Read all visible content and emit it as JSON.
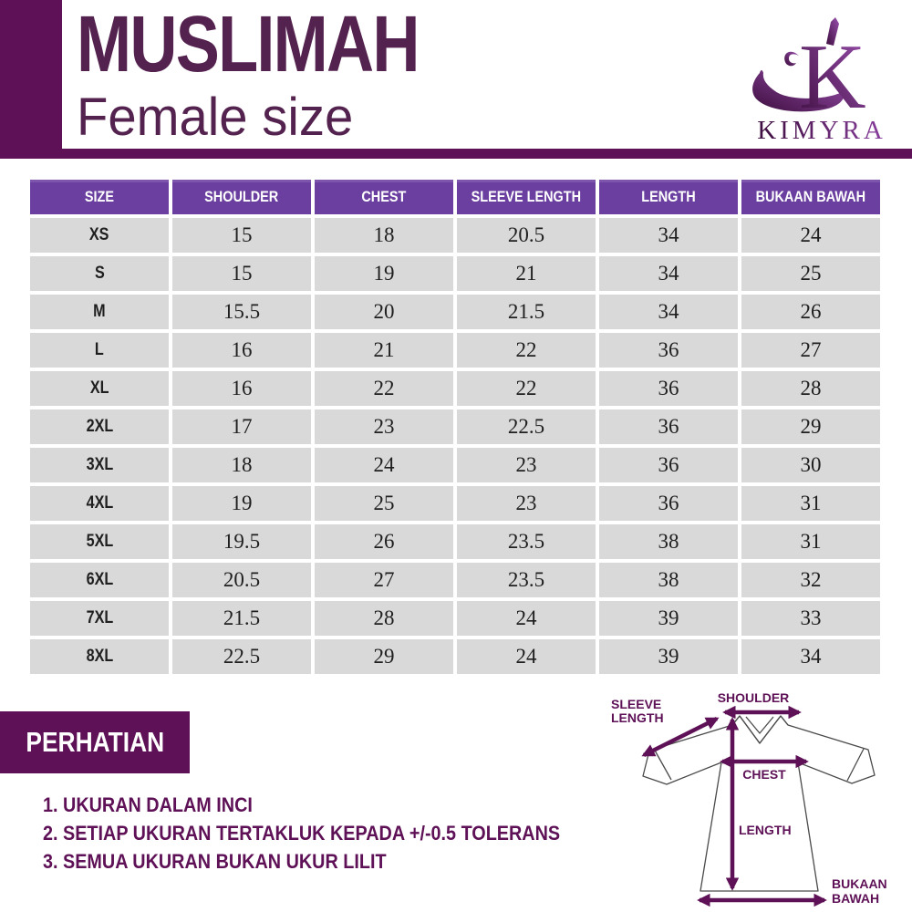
{
  "header": {
    "title": "MUSLIMAH",
    "subtitle": "Female size",
    "brand": "KIMYRA",
    "brand_monogram": "K"
  },
  "table": {
    "columns": [
      "SIZE",
      "SHOULDER",
      "CHEST",
      "SLEEVE LENGTH",
      "LENGTH",
      "BUKAAN BAWAH"
    ],
    "rows": [
      [
        "XS",
        "15",
        "18",
        "20.5",
        "34",
        "24"
      ],
      [
        "S",
        "15",
        "19",
        "21",
        "34",
        "25"
      ],
      [
        "M",
        "15.5",
        "20",
        "21.5",
        "34",
        "26"
      ],
      [
        "L",
        "16",
        "21",
        "22",
        "36",
        "27"
      ],
      [
        "XL",
        "16",
        "22",
        "22",
        "36",
        "28"
      ],
      [
        "2XL",
        "17",
        "23",
        "22.5",
        "36",
        "29"
      ],
      [
        "3XL",
        "18",
        "24",
        "23",
        "36",
        "30"
      ],
      [
        "4XL",
        "19",
        "25",
        "23",
        "36",
        "31"
      ],
      [
        "5XL",
        "19.5",
        "26",
        "23.5",
        "38",
        "31"
      ],
      [
        "6XL",
        "20.5",
        "27",
        "23.5",
        "38",
        "32"
      ],
      [
        "7XL",
        "21.5",
        "28",
        "24",
        "39",
        "33"
      ],
      [
        "8XL",
        "22.5",
        "29",
        "24",
        "39",
        "34"
      ]
    ]
  },
  "notes": {
    "title": "PERHATIAN",
    "items": [
      "1. UKURAN DALAM INCI",
      "2. SETIAP UKURAN TERTAKLUK KEPADA +/-0.5 TOLERANS",
      "3. SEMUA UKURAN BUKAN UKUR LILIT"
    ]
  },
  "diagram": {
    "sleeve_label_line1": "SLEEVE",
    "sleeve_label_line2": "LENGTH",
    "shoulder_label": "SHOULDER",
    "chest_label": "CHEST",
    "length_label": "LENGTH",
    "bukaan_label_line1": "BUKAAN",
    "bukaan_label_line2": "BAWAH"
  },
  "colors": {
    "brand_dark_purple": "#5e1156",
    "title_plum": "#54224f",
    "table_header_purple": "#6a3f9f",
    "row_gray": "#d9d9d9",
    "logo_light_purple": "#9a4fae",
    "logo_dark_purple": "#3d0e3e"
  }
}
